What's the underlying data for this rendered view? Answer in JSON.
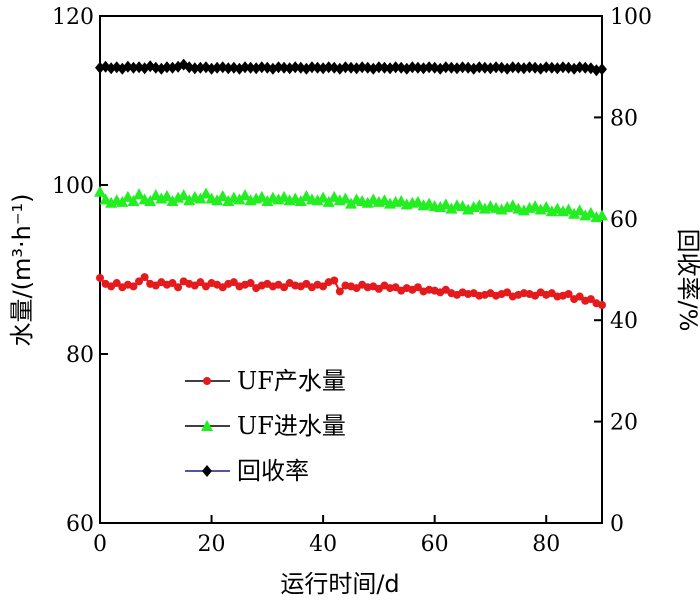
{
  "chart_data": {
    "type": "line",
    "title": "",
    "xlabel": "运行时间/d",
    "ylabel_left": "水量/(m³·h⁻¹)",
    "ylabel_right": "回收率/%",
    "xlim": [
      0,
      90
    ],
    "ylim_left": [
      60,
      120
    ],
    "ylim_right": [
      0,
      100
    ],
    "x_ticks": [
      0,
      20,
      40,
      60,
      80
    ],
    "y_ticks_left": [
      60,
      80,
      100,
      120
    ],
    "y_ticks_right": [
      0,
      20,
      40,
      60,
      80,
      100
    ],
    "grid": false,
    "legend_position": "lower-left",
    "series": [
      {
        "name": "UF产水量",
        "axis": "left",
        "color": "#e41a1c",
        "line_color": "#000000",
        "marker": "circle",
        "x": [
          0,
          1,
          2,
          3,
          4,
          5,
          6,
          7,
          8,
          9,
          10,
          11,
          12,
          13,
          14,
          15,
          16,
          17,
          18,
          19,
          20,
          21,
          22,
          23,
          24,
          25,
          26,
          27,
          28,
          29,
          30,
          31,
          32,
          33,
          34,
          35,
          36,
          37,
          38,
          39,
          40,
          41,
          42,
          43,
          44,
          45,
          46,
          47,
          48,
          49,
          50,
          51,
          52,
          53,
          54,
          55,
          56,
          57,
          58,
          59,
          60,
          61,
          62,
          63,
          64,
          65,
          66,
          67,
          68,
          69,
          70,
          71,
          72,
          73,
          74,
          75,
          76,
          77,
          78,
          79,
          80,
          81,
          82,
          83,
          84,
          85,
          86,
          87,
          88,
          89,
          90
        ],
        "y": [
          89.0,
          88.3,
          88.0,
          88.4,
          87.9,
          88.2,
          88.0,
          88.6,
          89.1,
          88.3,
          88.1,
          88.5,
          88.2,
          88.4,
          87.9,
          88.6,
          88.3,
          88.1,
          88.5,
          88.0,
          88.4,
          88.2,
          87.9,
          88.3,
          88.5,
          88.0,
          88.2,
          88.4,
          87.8,
          88.1,
          88.3,
          88.0,
          88.2,
          87.9,
          88.4,
          88.1,
          88.0,
          88.3,
          87.9,
          88.2,
          88.0,
          88.5,
          88.7,
          87.4,
          88.1,
          88.0,
          87.8,
          88.2,
          87.9,
          88.0,
          87.7,
          88.1,
          87.8,
          87.9,
          87.5,
          87.8,
          87.6,
          87.9,
          87.4,
          87.6,
          87.5,
          87.3,
          87.6,
          87.2,
          87.0,
          87.3,
          87.1,
          87.2,
          86.9,
          87.0,
          87.2,
          86.9,
          87.1,
          87.3,
          86.8,
          87.0,
          87.2,
          87.1,
          86.9,
          87.3,
          87.0,
          87.2,
          86.8,
          86.9,
          87.1,
          86.5,
          86.8,
          86.3,
          86.5,
          86.0,
          85.8
        ]
      },
      {
        "name": "UF进水量",
        "axis": "left",
        "color": "#22ee22",
        "line_color": "#000000",
        "marker": "triangle",
        "x": [
          0,
          1,
          2,
          3,
          4,
          5,
          6,
          7,
          8,
          9,
          10,
          11,
          12,
          13,
          14,
          15,
          16,
          17,
          18,
          19,
          20,
          21,
          22,
          23,
          24,
          25,
          26,
          27,
          28,
          29,
          30,
          31,
          32,
          33,
          34,
          35,
          36,
          37,
          38,
          39,
          40,
          41,
          42,
          43,
          44,
          45,
          46,
          47,
          48,
          49,
          50,
          51,
          52,
          53,
          54,
          55,
          56,
          57,
          58,
          59,
          60,
          61,
          62,
          63,
          64,
          65,
          66,
          67,
          68,
          69,
          70,
          71,
          72,
          73,
          74,
          75,
          76,
          77,
          78,
          79,
          80,
          81,
          82,
          83,
          84,
          85,
          86,
          87,
          88,
          89,
          90
        ],
        "y": [
          99.2,
          98.3,
          97.9,
          98.2,
          98.0,
          98.6,
          98.1,
          98.9,
          98.3,
          98.1,
          98.8,
          98.4,
          98.7,
          98.1,
          98.5,
          98.8,
          98.2,
          98.6,
          98.4,
          99.0,
          98.4,
          98.2,
          98.7,
          98.1,
          98.5,
          98.3,
          98.8,
          98.2,
          98.4,
          98.6,
          98.1,
          98.5,
          98.3,
          98.6,
          98.2,
          98.4,
          98.1,
          98.7,
          98.3,
          98.2,
          98.5,
          98.0,
          98.6,
          98.2,
          98.4,
          97.8,
          98.3,
          98.1,
          97.9,
          98.3,
          98.0,
          98.2,
          97.8,
          98.0,
          98.1,
          97.7,
          97.9,
          98.0,
          97.6,
          97.8,
          97.5,
          97.4,
          97.7,
          97.2,
          97.6,
          97.5,
          97.1,
          97.4,
          97.6,
          97.2,
          97.5,
          97.3,
          97.1,
          97.4,
          97.6,
          97.2,
          97.0,
          97.3,
          97.5,
          97.1,
          97.4,
          96.9,
          97.2,
          96.9,
          97.1,
          96.6,
          97.0,
          96.4,
          96.7,
          96.2,
          96.4
        ]
      },
      {
        "name": "回收率",
        "axis": "right",
        "color": "#000000",
        "line_color": "#1a1a8c",
        "marker": "diamond",
        "x": [
          0,
          1,
          2,
          3,
          4,
          5,
          6,
          7,
          8,
          9,
          10,
          11,
          12,
          13,
          14,
          15,
          16,
          17,
          18,
          19,
          20,
          21,
          22,
          23,
          24,
          25,
          26,
          27,
          28,
          29,
          30,
          31,
          32,
          33,
          34,
          35,
          36,
          37,
          38,
          39,
          40,
          41,
          42,
          43,
          44,
          45,
          46,
          47,
          48,
          49,
          50,
          51,
          52,
          53,
          54,
          55,
          56,
          57,
          58,
          59,
          60,
          61,
          62,
          63,
          64,
          65,
          66,
          67,
          68,
          69,
          70,
          71,
          72,
          73,
          74,
          75,
          76,
          77,
          78,
          79,
          80,
          81,
          82,
          83,
          84,
          85,
          86,
          87,
          88,
          89,
          90
        ],
        "y": [
          89.8,
          90.0,
          89.7,
          89.9,
          89.6,
          90.0,
          89.8,
          89.9,
          89.7,
          90.1,
          89.8,
          89.6,
          89.9,
          89.8,
          90.0,
          90.4,
          89.9,
          89.7,
          89.8,
          89.9,
          89.6,
          89.8,
          89.9,
          89.7,
          89.8,
          89.6,
          89.9,
          89.8,
          89.7,
          89.9,
          89.8,
          89.6,
          89.9,
          89.8,
          89.7,
          89.9,
          89.8,
          89.6,
          89.9,
          89.8,
          89.7,
          89.9,
          89.8,
          89.6,
          89.9,
          89.8,
          89.7,
          89.9,
          89.8,
          89.6,
          89.9,
          89.8,
          89.7,
          89.9,
          89.8,
          89.6,
          89.9,
          89.8,
          89.7,
          89.9,
          89.8,
          89.6,
          89.9,
          89.8,
          89.7,
          89.9,
          89.8,
          89.6,
          89.9,
          89.8,
          89.7,
          89.9,
          89.8,
          89.6,
          89.9,
          89.8,
          89.7,
          89.9,
          89.8,
          89.6,
          89.9,
          89.8,
          89.7,
          89.9,
          89.8,
          89.6,
          89.9,
          89.8,
          89.7,
          89.3,
          89.5
        ]
      }
    ]
  }
}
